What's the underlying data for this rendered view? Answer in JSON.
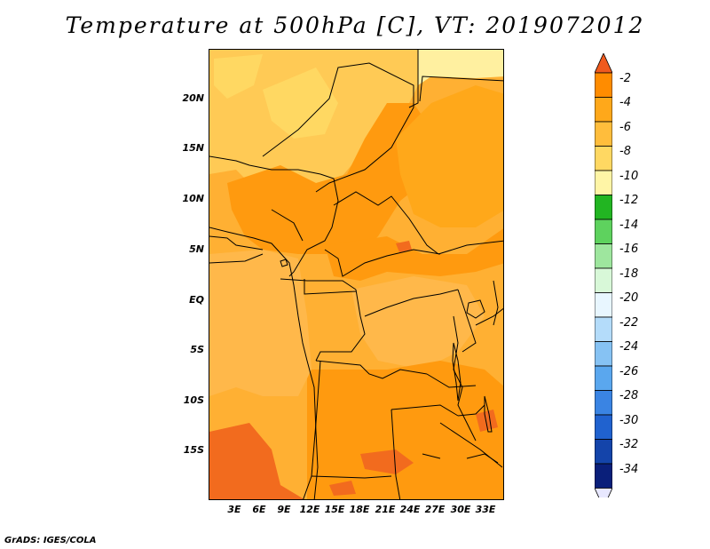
{
  "title": "Temperature at 500hPa [C], VT: 2019072012",
  "credit": "GrADS: IGES/COLA",
  "map": {
    "lat_labels": [
      "20N",
      "15N",
      "10N",
      "5N",
      "EQ",
      "5S",
      "10S",
      "15S"
    ],
    "lon_labels": [
      "3E",
      "6E",
      "9E",
      "12E",
      "15E",
      "18E",
      "21E",
      "24E",
      "27E",
      "30E",
      "33E"
    ],
    "lat_range": [
      -20,
      25
    ],
    "lon_range": [
      0,
      35
    ],
    "base_color": "#ffb033"
  },
  "colorbar": {
    "labels": [
      "-2",
      "-4",
      "-6",
      "-8",
      "-10",
      "-12",
      "-14",
      "-16",
      "-18",
      "-20",
      "-22",
      "-24",
      "-26",
      "-28",
      "-30",
      "-32",
      "-34"
    ],
    "colors": [
      "#f05a1e",
      "#ff8c00",
      "#ffa81a",
      "#ffbd3c",
      "#ffd862",
      "#fff5a6",
      "#22b522",
      "#5ed25e",
      "#9ee69e",
      "#d8f8d8",
      "#e8f6ff",
      "#b4dcfa",
      "#86c2f3",
      "#5aa7ee",
      "#3a84e3",
      "#2062cf",
      "#1444aa",
      "#0a1f7a",
      "#e8e8ff"
    ]
  }
}
